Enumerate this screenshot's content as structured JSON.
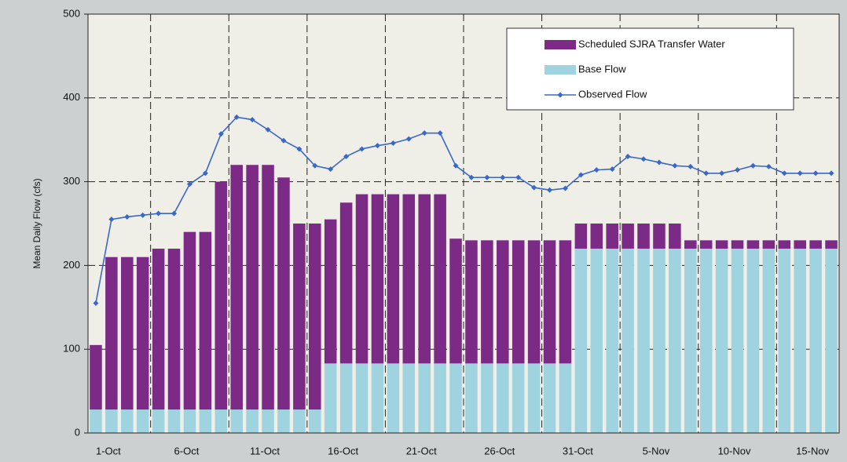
{
  "chart_data": {
    "type": "bar",
    "stacked": true,
    "y_label": "Mean Daily Flow (cfs)",
    "categories": [
      null,
      "1-Oct",
      null,
      null,
      null,
      null,
      "6-Oct",
      null,
      null,
      null,
      null,
      "11-Oct",
      null,
      null,
      null,
      null,
      "16-Oct",
      null,
      null,
      null,
      null,
      "21-Oct",
      null,
      null,
      null,
      null,
      "26-Oct",
      null,
      null,
      null,
      null,
      "31-Oct",
      null,
      null,
      null,
      null,
      "5-Nov",
      null,
      null,
      null,
      null,
      "10-Nov",
      null,
      null,
      null,
      null,
      "15-Nov",
      null
    ],
    "series": [
      {
        "name": "Scheduled SJRA Transfer Water",
        "type": "bar",
        "color": "#7b2a86",
        "values": [
          77,
          182,
          182,
          182,
          192,
          192,
          212,
          212,
          272,
          292,
          292,
          292,
          277,
          222,
          222,
          172,
          192,
          202,
          202,
          202,
          202,
          202,
          202,
          149,
          147,
          147,
          147,
          147,
          147,
          147,
          147,
          30,
          30,
          30,
          30,
          30,
          30,
          30,
          10,
          10,
          10,
          10,
          10,
          10,
          10,
          10,
          10,
          10
        ]
      },
      {
        "name": "Base Flow",
        "type": "bar",
        "color": "#9fd3df",
        "values": [
          28,
          28,
          28,
          28,
          28,
          28,
          28,
          28,
          28,
          28,
          28,
          28,
          28,
          28,
          28,
          83,
          83,
          83,
          83,
          83,
          83,
          83,
          83,
          83,
          83,
          83,
          83,
          83,
          83,
          83,
          83,
          220,
          220,
          220,
          220,
          220,
          220,
          220,
          220,
          220,
          220,
          220,
          220,
          220,
          220,
          220,
          220,
          220
        ]
      },
      {
        "name": "Observed Flow",
        "type": "line",
        "color": "#3a68c8",
        "values": [
          155,
          255,
          258,
          260,
          262,
          262,
          297,
          310,
          357,
          377,
          374,
          362,
          349,
          339,
          319,
          315,
          330,
          339,
          343,
          346,
          351,
          358,
          358,
          319,
          305,
          305,
          305,
          305,
          293,
          290,
          292,
          308,
          314,
          315,
          330,
          327,
          323,
          319,
          318,
          310,
          310,
          314,
          319,
          318,
          310,
          310,
          310,
          310
        ]
      }
    ],
    "ylim": [
      0,
      500
    ],
    "yticks": [
      0,
      100,
      200,
      300,
      400,
      500
    ],
    "grid": true,
    "legend": "top-right"
  }
}
